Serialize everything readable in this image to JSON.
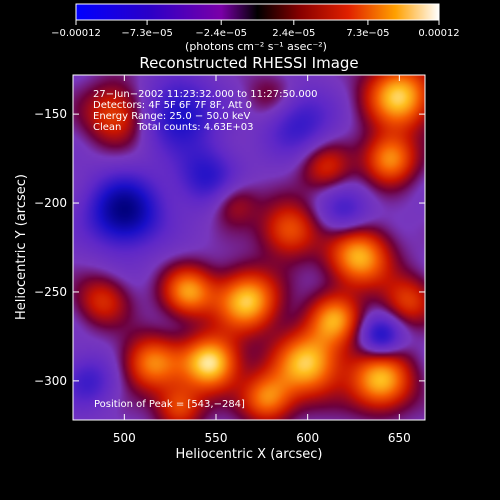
{
  "chart_data": {
    "type": "heatmap",
    "title": "Reconstructed RHESSI Image",
    "xlabel": "Heliocentric X (arcsec)",
    "ylabel": "Heliocentric Y (arcsec)",
    "xlim": [
      472,
      664
    ],
    "ylim": [
      -322,
      -128
    ],
    "x_ticks": [
      500,
      550,
      600,
      650
    ],
    "y_ticks": [
      -150,
      -200,
      -250,
      -300
    ],
    "x_tick_labels": [
      "500",
      "550",
      "600",
      "650"
    ],
    "y_tick_labels": [
      "−150",
      "−200",
      "−250",
      "−300"
    ],
    "colorbar": {
      "range": [
        -0.00012,
        0.00012
      ],
      "ticks": [
        -0.00012,
        -7.3e-05,
        -2.4e-05,
        2.4e-05,
        7.3e-05,
        0.00012
      ],
      "tick_labels": [
        "−0.00012",
        "−7.3e−05",
        "−2.4e−05",
        "2.4e−05",
        "7.3e−05",
        "0.00012"
      ],
      "unit_label": "(photons cm⁻² s⁻¹ asec⁻²)"
    },
    "annotations": [
      "27−Jun−2002 11:23:32.000 to 11:27:50.000",
      "Detectors: 4F 5F 6F 7F 8F, Att 0",
      "Energy Range: 25.0 − 50.0 keV",
      "Clean     Total counts: 4.63E+03"
    ],
    "peak_label": "Position of Peak = [543,−284]",
    "peak_position": [
      543,
      -284
    ],
    "intensity_sources": [
      {
        "x": 547,
        "y": -290,
        "amp": 1.0,
        "s": 11
      },
      {
        "x": 567,
        "y": -255,
        "amp": 0.9,
        "s": 12
      },
      {
        "x": 600,
        "y": -290,
        "amp": 0.9,
        "s": 13
      },
      {
        "x": 640,
        "y": -300,
        "amp": 0.85,
        "s": 12
      },
      {
        "x": 628,
        "y": -230,
        "amp": 0.85,
        "s": 12
      },
      {
        "x": 650,
        "y": -140,
        "amp": 0.9,
        "s": 13
      },
      {
        "x": 645,
        "y": -175,
        "amp": 0.75,
        "s": 10
      },
      {
        "x": 535,
        "y": -250,
        "amp": 0.75,
        "s": 10
      },
      {
        "x": 515,
        "y": -290,
        "amp": 0.7,
        "s": 11
      },
      {
        "x": 590,
        "y": -215,
        "amp": 0.6,
        "s": 11
      },
      {
        "x": 615,
        "y": -265,
        "amp": 0.7,
        "s": 10
      },
      {
        "x": 495,
        "y": -150,
        "amp": 0.55,
        "s": 12
      },
      {
        "x": 578,
        "y": -310,
        "amp": 0.7,
        "s": 10
      },
      {
        "x": 530,
        "y": -315,
        "amp": 0.55,
        "s": 9
      },
      {
        "x": 610,
        "y": -180,
        "amp": 0.45,
        "s": 10
      },
      {
        "x": 560,
        "y": -200,
        "amp": 0.35,
        "s": 9
      },
      {
        "x": 488,
        "y": -255,
        "amp": 0.45,
        "s": 10
      },
      {
        "x": 655,
        "y": -255,
        "amp": 0.5,
        "s": 10
      },
      {
        "x": 580,
        "y": -140,
        "amp": 0.25,
        "s": 10
      },
      {
        "x": 500,
        "y": -205,
        "amp": -0.9,
        "s": 14
      },
      {
        "x": 530,
        "y": -150,
        "amp": -0.6,
        "s": 14
      },
      {
        "x": 545,
        "y": -185,
        "amp": -0.5,
        "s": 12
      },
      {
        "x": 595,
        "y": -155,
        "amp": -0.45,
        "s": 13
      },
      {
        "x": 640,
        "y": -275,
        "amp": -0.6,
        "s": 8
      },
      {
        "x": 620,
        "y": -205,
        "amp": -0.4,
        "s": 10
      },
      {
        "x": 480,
        "y": -300,
        "amp": -0.4,
        "s": 10
      }
    ]
  }
}
